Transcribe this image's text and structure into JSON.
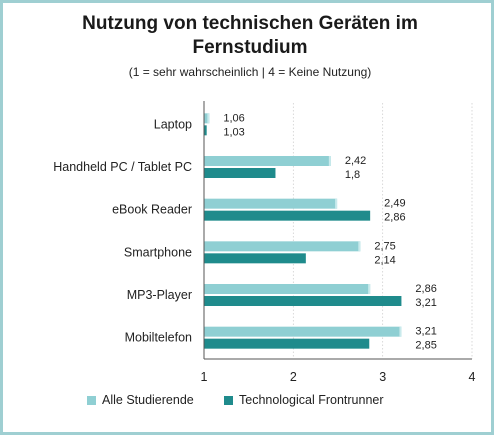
{
  "chart_data": {
    "type": "bar",
    "orientation": "horizontal",
    "title_line1": "Nutzung von technischen Geräten im",
    "title_line2": "Fernstudium",
    "subtitle": "(1 = sehr wahrscheinlich | 4 = Keine Nutzung)",
    "categories": [
      "Laptop",
      "Handheld PC / Tablet PC",
      "eBook Reader",
      "Smartphone",
      "MP3-Player",
      "Mobiltelefon"
    ],
    "series": [
      {
        "name": "Alle Studierende",
        "color": "#8fcfd3",
        "values": [
          1.06,
          2.42,
          2.49,
          2.75,
          2.86,
          3.21
        ],
        "labels": [
          "1,06",
          "2,42",
          "2,49",
          "2,75",
          "2,86",
          "3,21"
        ]
      },
      {
        "name": "Technological Frontrunner",
        "color": "#1f8b8c",
        "values": [
          1.03,
          1.8,
          2.86,
          2.14,
          3.21,
          2.85
        ],
        "labels": [
          "1,03",
          "1,8",
          "2,86",
          "2,14",
          "3,21",
          "2,85"
        ]
      }
    ],
    "xlim": [
      1,
      4
    ],
    "xticks": [
      1,
      2,
      3,
      4
    ],
    "xtick_labels": [
      "1",
      "2",
      "3",
      "4"
    ],
    "grid": true,
    "legend_position": "bottom"
  }
}
